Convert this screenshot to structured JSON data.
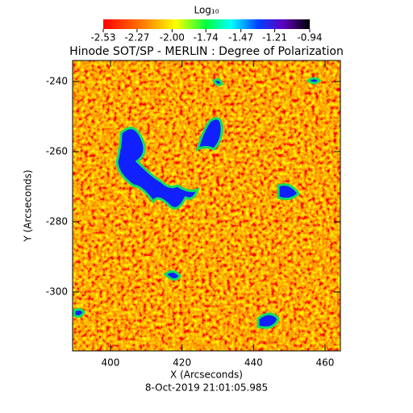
{
  "chart_data": {
    "type": "image",
    "title": "Hinode SOT/SP - MERLIN : Degree of Polarization",
    "xlabel": "X (Arcseconds)",
    "ylabel": "Y (Arcseconds)",
    "xlim": [
      389.4,
      464.3
    ],
    "xticks": [
      400,
      420,
      440,
      460
    ],
    "ylim": [
      -316.8,
      -234.0
    ],
    "yticks": [
      -240,
      -260,
      -280,
      -300
    ],
    "footer": "8-Oct-2019 21:01:05.985",
    "colorbar": {
      "label": "Log₁₀",
      "lim": [
        -2.53,
        -0.94
      ],
      "ticks": [
        -2.53,
        -2.27,
        {
          "value": -2,
          "label": "-2.00"
        },
        -1.74,
        -1.47,
        -1.21,
        -0.94
      ]
    }
  }
}
